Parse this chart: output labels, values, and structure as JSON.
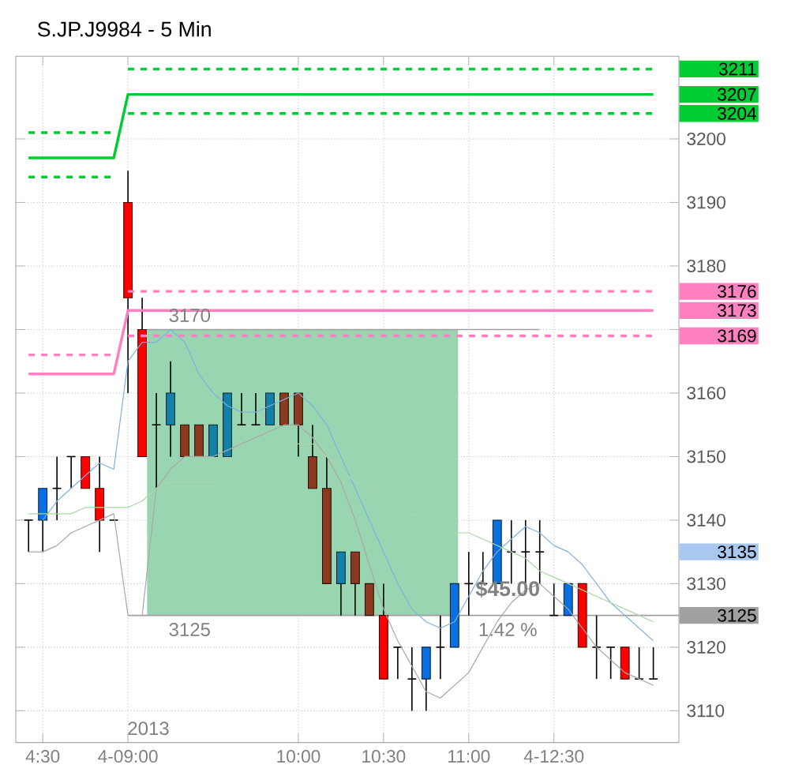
{
  "chart_data": {
    "type": "candlestick",
    "title": "S.JP.J9984 - 5 Min",
    "categories": [
      null,
      "4:30",
      null,
      null,
      null,
      null,
      null,
      "4-09:00",
      null,
      null,
      null,
      null,
      null,
      null,
      null,
      null,
      null,
      null,
      null,
      "10:00",
      null,
      null,
      null,
      null,
      null,
      "10:30",
      null,
      null,
      null,
      null,
      null,
      "11:00",
      null,
      null,
      null,
      null,
      null,
      "4-12:30",
      null,
      null,
      null,
      null,
      null,
      null,
      null
    ],
    "ohlc": [
      [
        3140,
        3140,
        3135,
        3140
      ],
      [
        3140,
        3145,
        3135,
        3145
      ],
      [
        3145,
        3150,
        3140,
        3145
      ],
      [
        3150,
        3150,
        3145,
        3150
      ],
      [
        3150,
        3150,
        3145,
        3145
      ],
      [
        3145,
        3150,
        3135,
        3140
      ],
      [
        3140,
        3140,
        3140,
        3140
      ],
      [
        3190,
        3195,
        3160,
        3175
      ],
      [
        3170,
        3175,
        3150,
        3150
      ],
      [
        3155,
        3160,
        3145,
        3155
      ],
      [
        3155,
        3165,
        3150,
        3160
      ],
      [
        3155,
        3155,
        3150,
        3150
      ],
      [
        3155,
        3155,
        3150,
        3150
      ],
      [
        3150,
        3155,
        3150,
        3155
      ],
      [
        3150,
        3160,
        3150,
        3160
      ],
      [
        3155,
        3160,
        3155,
        3155
      ],
      [
        3155,
        3160,
        3155,
        3155
      ],
      [
        3155,
        3160,
        3155,
        3160
      ],
      [
        3160,
        3160,
        3155,
        3155
      ],
      [
        3160,
        3160,
        3150,
        3155
      ],
      [
        3150,
        3155,
        3145,
        3145
      ],
      [
        3145,
        3150,
        3130,
        3130
      ],
      [
        3130,
        3135,
        3125,
        3135
      ],
      [
        3135,
        3135,
        3125,
        3130
      ],
      [
        3130,
        3130,
        3125,
        3125
      ],
      [
        3125,
        3130,
        3115,
        3115
      ],
      [
        3120,
        3120,
        3115,
        3120
      ],
      [
        3115,
        3120,
        3110,
        3115
      ],
      [
        3115,
        3120,
        3110,
        3120
      ],
      [
        3120,
        3125,
        3115,
        3120
      ],
      [
        3120,
        3130,
        3120,
        3130
      ],
      [
        3130,
        3135,
        3125,
        3130
      ],
      [
        3130,
        3135,
        3130,
        3130
      ],
      [
        3130,
        3140,
        3130,
        3140
      ],
      [
        3135,
        3140,
        3130,
        3135
      ],
      [
        3135,
        3140,
        3130,
        3135
      ],
      [
        3135,
        3140,
        3130,
        3135
      ],
      [
        3125,
        3130,
        3125,
        3125
      ],
      [
        3125,
        3130,
        3125,
        3130
      ],
      [
        3130,
        3130,
        3120,
        3120
      ],
      [
        3120,
        3125,
        3115,
        3120
      ],
      [
        3120,
        3120,
        3115,
        3120
      ],
      [
        3120,
        3120,
        3115,
        3115
      ],
      [
        3115,
        3120,
        3115,
        3115
      ],
      [
        3115,
        3120,
        3115,
        3115
      ]
    ],
    "colors": [
      "#000000",
      "#0a6fe0",
      "#000000",
      "#000000",
      "#ff0000",
      "#ff0000",
      "#000000",
      "#ff0000",
      "#ff0000",
      "#000000",
      "#1380a8",
      "#8b3a1f",
      "#8b3a1f",
      "#1380a8",
      "#1380a8",
      "#000000",
      "#000000",
      "#1380a8",
      "#8b3a1f",
      "#8b3a1f",
      "#8b3a1f",
      "#8b3a1f",
      "#1380a8",
      "#8b3a1f",
      "#8b3a1f",
      "#ff0000",
      "#000000",
      "#000000",
      "#0a6fe0",
      "#000000",
      "#0a6fe0",
      "#000000",
      "#000000",
      "#0a6fe0",
      "#000000",
      "#000000",
      "#000000",
      "#000000",
      "#0a6fe0",
      "#ff0000",
      "#000000",
      "#000000",
      "#ff0000",
      "#000000",
      "#000000"
    ],
    "series": [
      {
        "type": "line",
        "name": "3207",
        "color": "#00cc33",
        "values": [
          3197,
          3197,
          3197,
          3197,
          3197,
          3197,
          3197,
          3207,
          3207,
          3207,
          3207,
          3207,
          3207,
          3207,
          3207,
          3207,
          3207,
          3207,
          3207,
          3207,
          3207,
          3207,
          3207,
          3207,
          3207,
          3207,
          3207,
          3207,
          3207,
          3207,
          3207,
          3207,
          3207,
          3207,
          3207,
          3207,
          3207,
          3207,
          3207,
          3207,
          3207,
          3207,
          3207,
          3207,
          3207
        ]
      },
      {
        "type": "line",
        "color": "#00cc33",
        "line_style": "dashed",
        "values": [
          3201,
          3201,
          3201,
          3201,
          3201,
          3201,
          3201,
          null,
          null,
          null,
          null,
          null,
          null,
          null,
          null,
          null,
          null,
          null,
          null,
          null,
          null,
          null,
          null,
          null,
          null,
          null,
          null,
          null,
          null,
          null,
          null,
          null,
          null,
          null,
          null,
          null,
          null,
          null,
          null,
          null,
          null,
          null,
          null,
          null,
          null
        ]
      },
      {
        "type": "line",
        "color": "#00cc33",
        "line_style": "dashed",
        "values": [
          3194,
          3194,
          3194,
          3194,
          3194,
          3194,
          3194,
          null,
          null,
          null,
          null,
          null,
          null,
          null,
          null,
          null,
          null,
          null,
          null,
          null,
          null,
          null,
          null,
          null,
          null,
          null,
          null,
          null,
          null,
          null,
          null,
          null,
          null,
          null,
          null,
          null,
          null,
          null,
          null,
          null,
          null,
          null,
          null,
          null,
          null
        ]
      },
      {
        "type": "line",
        "name": "3211",
        "color": "#00cc33",
        "line_style": "dashed",
        "values": [
          null,
          null,
          null,
          null,
          null,
          null,
          null,
          3211,
          3211,
          3211,
          3211,
          3211,
          3211,
          3211,
          3211,
          3211,
          3211,
          3211,
          3211,
          3211,
          3211,
          3211,
          3211,
          3211,
          3211,
          3211,
          3211,
          3211,
          3211,
          3211,
          3211,
          3211,
          3211,
          3211,
          3211,
          3211,
          3211,
          3211,
          3211,
          3211,
          3211,
          3211,
          3211,
          3211,
          3211
        ]
      },
      {
        "type": "line",
        "name": "3204",
        "color": "#00cc33",
        "line_style": "dashed",
        "values": [
          null,
          null,
          null,
          null,
          null,
          null,
          null,
          3204,
          3204,
          3204,
          3204,
          3204,
          3204,
          3204,
          3204,
          3204,
          3204,
          3204,
          3204,
          3204,
          3204,
          3204,
          3204,
          3204,
          3204,
          3204,
          3204,
          3204,
          3204,
          3204,
          3204,
          3204,
          3204,
          3204,
          3204,
          3204,
          3204,
          3204,
          3204,
          3204,
          3204,
          3204,
          3204,
          3204,
          3204
        ]
      },
      {
        "type": "line",
        "name": "3173",
        "color": "#ff80c0",
        "values": [
          3163,
          3163,
          3163,
          3163,
          3163,
          3163,
          3163,
          3173,
          3173,
          3173,
          3173,
          3173,
          3173,
          3173,
          3173,
          3173,
          3173,
          3173,
          3173,
          3173,
          3173,
          3173,
          3173,
          3173,
          3173,
          3173,
          3173,
          3173,
          3173,
          3173,
          3173,
          3173,
          3173,
          3173,
          3173,
          3173,
          3173,
          3173,
          3173,
          3173,
          3173,
          3173,
          3173,
          3173,
          3173
        ]
      },
      {
        "type": "line",
        "color": "#ff80c0",
        "line_style": "dashed",
        "values": [
          3166,
          3166,
          3166,
          3166,
          3166,
          3166,
          3166,
          null,
          null,
          null,
          null,
          null,
          null,
          null,
          null,
          null,
          null,
          null,
          null,
          null,
          null,
          null,
          null,
          null,
          null,
          null,
          null,
          null,
          null,
          null,
          null,
          null,
          null,
          null,
          null,
          null,
          null,
          null,
          null,
          null,
          null,
          null,
          null,
          null,
          null
        ]
      },
      {
        "type": "line",
        "name": "3176",
        "color": "#ff80c0",
        "line_style": "dashed",
        "values": [
          null,
          null,
          null,
          null,
          null,
          null,
          null,
          3176,
          3176,
          3176,
          3176,
          3176,
          3176,
          3176,
          3176,
          3176,
          3176,
          3176,
          3176,
          3176,
          3176,
          3176,
          3176,
          3176,
          3176,
          3176,
          3176,
          3176,
          3176,
          3176,
          3176,
          3176,
          3176,
          3176,
          3176,
          3176,
          3176,
          3176,
          3176,
          3176,
          3176,
          3176,
          3176,
          3176,
          3176
        ]
      },
      {
        "type": "line",
        "name": "3169",
        "color": "#ff80c0",
        "line_style": "dashed",
        "values": [
          null,
          null,
          null,
          null,
          null,
          null,
          null,
          3169,
          3169,
          3169,
          3169,
          3169,
          3169,
          3169,
          3169,
          3169,
          3169,
          3169,
          3169,
          3169,
          3169,
          3169,
          3169,
          3169,
          3169,
          3169,
          3169,
          3169,
          3169,
          3169,
          3169,
          3169,
          3169,
          3169,
          3169,
          3169,
          3169,
          3169,
          3169,
          3169,
          3169,
          3169,
          3169,
          3169,
          3169
        ]
      },
      {
        "type": "line",
        "color": "#a8a8a8",
        "values": [
          3135,
          3135,
          3136,
          3138,
          3139,
          3140,
          3141,
          3125,
          3125,
          3145,
          3148,
          3150,
          3150,
          3150,
          3151,
          3152,
          3153,
          3154,
          3155,
          3155,
          3153,
          3150,
          3146,
          3140,
          3133,
          3126,
          3121,
          3117,
          3113,
          3112,
          3114,
          3116,
          3120,
          3124,
          3127,
          3129,
          3130,
          3128,
          3126,
          3123,
          3120,
          3118,
          3116,
          3115,
          3114
        ]
      },
      {
        "type": "line",
        "color": "#80b0e0",
        "values": [
          null,
          3140,
          3143,
          3145,
          3147,
          3149,
          3148,
          3165,
          3168,
          3168,
          3170,
          3168,
          3163,
          3160,
          3158,
          3157,
          3157,
          3158,
          3159,
          3160,
          3158,
          3155,
          3150,
          3145,
          3140,
          3135,
          3130,
          3126,
          3124,
          3123,
          3124,
          3128,
          3132,
          3135,
          3137,
          3139,
          3138,
          3136,
          3135,
          3133,
          3130,
          3127,
          3125,
          3123,
          3121
        ]
      },
      {
        "type": "line",
        "color": "#a8d8a8",
        "values": [
          3141,
          3141,
          3141,
          3141,
          3142,
          3142,
          3142,
          3142,
          3143,
          3145,
          3146,
          3146,
          3146,
          3146,
          3147,
          3148,
          3149,
          3150,
          3151,
          3152,
          3152,
          3150,
          3148,
          3146,
          3145,
          3144,
          3142,
          3141,
          3140,
          3139,
          3138,
          3138,
          3137,
          3136,
          3135,
          3134,
          3132,
          3131,
          3130,
          3129,
          3128,
          3127,
          3126,
          3125,
          3124
        ]
      }
    ],
    "ylim": [
      3105,
      3213
    ],
    "yticks": [
      3110,
      3120,
      3130,
      3140,
      3150,
      3160,
      {
        "value": 3170,
        "label": null
      },
      3180,
      3190,
      3200
    ],
    "grid": true,
    "legend": "right",
    "bands": [
      {
        "axis": "y",
        "from": 3125,
        "to": 3170,
        "color": "#99d5b1"
      }
    ],
    "ref_lines": [
      {
        "axis": "y",
        "value": 3170,
        "color": "#a0a0a0"
      },
      {
        "axis": "y",
        "value": 3125,
        "label": "3125",
        "color": "#a0a0a0"
      }
    ],
    "annotations": [
      {
        "text": "3170",
        "y": 3170
      },
      {
        "text": "3125",
        "y": 3125
      },
      "$45.00",
      "1.42 %",
      "2013",
      "3135"
    ]
  }
}
